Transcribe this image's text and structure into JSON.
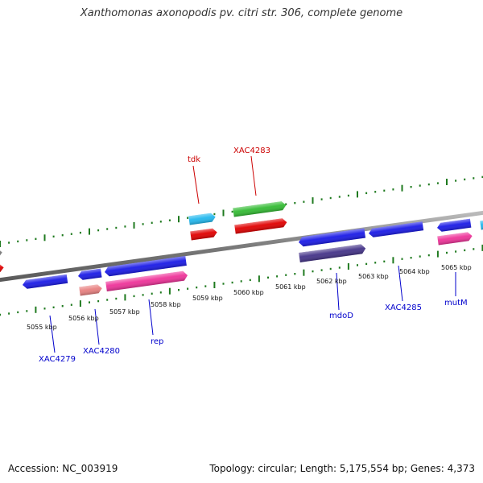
{
  "title": "Xanthomonas axonopodis pv. citri str. 306, complete genome",
  "footer": {
    "accession": "Accession: NC_003919",
    "stats": "Topology: circular; Length: 5,175,554 bp; Genes: 4,373"
  },
  "colors": {
    "backbone": "#8a8a8a",
    "tick": "#1f7a1f",
    "label_top": "#cc0000",
    "label_bottom": "#0000cc"
  },
  "scale_labels": [
    "5055 kbp",
    "5056 kbp",
    "5057 kbp",
    "5058 kbp",
    "5059 kbp",
    "5060 kbp",
    "5061 kbp",
    "5062 kbp",
    "5063 kbp",
    "5064 kbp",
    "5065 kbp"
  ],
  "genes": [
    {
      "id": "g-edge-gray",
      "color": "#7a7a7a",
      "strand": "+"
    },
    {
      "id": "g-edge-red",
      "color": "#e00000",
      "strand": "+"
    },
    {
      "id": "g-4279",
      "color": "#1a1ae6",
      "strand": "-"
    },
    {
      "id": "g-small-blue",
      "color": "#1a1ae6",
      "strand": "-"
    },
    {
      "id": "g-4280",
      "color": "#e88080",
      "strand": "+"
    },
    {
      "id": "g-rep-blue",
      "color": "#1a1ae6",
      "strand": "-"
    },
    {
      "id": "g-rep",
      "color": "#ee3399",
      "strand": "+"
    },
    {
      "id": "g-cyan",
      "color": "#22b8ee",
      "strand": "+"
    },
    {
      "id": "g-tdk",
      "color": "#e00000",
      "strand": "+"
    },
    {
      "id": "g-green",
      "color": "#33bb33",
      "strand": "+"
    },
    {
      "id": "g-4283",
      "color": "#e00000",
      "strand": "+"
    },
    {
      "id": "g-blue-mid",
      "color": "#1a1ae6",
      "strand": "-"
    },
    {
      "id": "g-mdoD",
      "color": "#443388",
      "strand": "+"
    },
    {
      "id": "g-4285",
      "color": "#1a1ae6",
      "strand": "-"
    },
    {
      "id": "g-blue-right",
      "color": "#1a1ae6",
      "strand": "-"
    },
    {
      "id": "g-mutM",
      "color": "#ee3399",
      "strand": "+"
    },
    {
      "id": "g-edge-cyan",
      "color": "#22b8ee",
      "strand": "+"
    }
  ],
  "gene_labels": [
    {
      "text": "tdk",
      "track": "top"
    },
    {
      "text": "XAC4283",
      "track": "top"
    },
    {
      "text": "XAC4279",
      "track": "bottom"
    },
    {
      "text": "XAC4280",
      "track": "bottom"
    },
    {
      "text": "rep",
      "track": "bottom"
    },
    {
      "text": "mdoD",
      "track": "bottom"
    },
    {
      "text": "XAC4285",
      "track": "bottom"
    },
    {
      "text": "mutM",
      "track": "bottom"
    }
  ]
}
